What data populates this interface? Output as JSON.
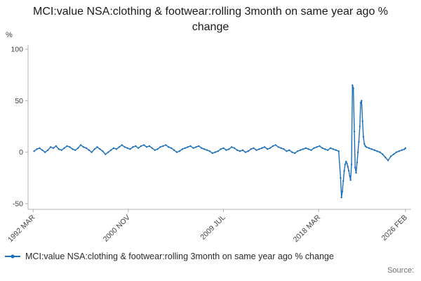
{
  "title": "MCI:value NSA:clothing & footwear:rolling 3month on same year ago % change",
  "source_label": "Source:",
  "legend": {
    "label": "MCI:value NSA:clothing & footwear:rolling 3month on same year ago % change"
  },
  "colors": {
    "line": "#1d70b8",
    "axis": "#b1b4b6",
    "tick_text": "#414042",
    "title_text": "#1a1a1a"
  },
  "chart_data": {
    "type": "line",
    "title": "MCI:value NSA:clothing & footwear:rolling 3month on same year ago % change",
    "xlabel": "",
    "ylabel": "%",
    "ylim": [
      -50,
      100
    ],
    "xlim": [
      1991.7,
      2026.6
    ],
    "yticks": [
      100,
      50,
      0,
      -50
    ],
    "xticks": [
      {
        "x": 1992.17,
        "label": "1992 MAR"
      },
      {
        "x": 2000.83,
        "label": "2000 NOV"
      },
      {
        "x": 2009.5,
        "label": "2009 JUL"
      },
      {
        "x": 2018.17,
        "label": "2018 MAR"
      },
      {
        "x": 2026.08,
        "label": "2026 FEB"
      }
    ],
    "grid": false,
    "legend_position": "bottom",
    "series": [
      {
        "name": "MCI:value NSA:clothing & footwear:rolling 3month on same year ago % change",
        "x": [
          1992.25,
          1992.5,
          1992.75,
          1993,
          1993.25,
          1993.5,
          1993.75,
          1994,
          1994.25,
          1994.5,
          1994.75,
          1995,
          1995.25,
          1995.5,
          1995.75,
          1996,
          1996.25,
          1996.5,
          1996.75,
          1997,
          1997.25,
          1997.5,
          1997.75,
          1998,
          1998.25,
          1998.5,
          1998.75,
          1999,
          1999.25,
          1999.5,
          1999.75,
          2000,
          2000.25,
          2000.5,
          2000.75,
          2001,
          2001.25,
          2001.5,
          2001.75,
          2002,
          2002.25,
          2002.5,
          2002.75,
          2003,
          2003.25,
          2003.5,
          2003.75,
          2004,
          2004.25,
          2004.5,
          2004.75,
          2005,
          2005.25,
          2005.5,
          2005.75,
          2006,
          2006.25,
          2006.5,
          2006.75,
          2007,
          2007.25,
          2007.5,
          2007.75,
          2008,
          2008.25,
          2008.5,
          2008.75,
          2009,
          2009.25,
          2009.5,
          2009.75,
          2010,
          2010.25,
          2010.5,
          2010.75,
          2011,
          2011.25,
          2011.5,
          2011.75,
          2012,
          2012.25,
          2012.5,
          2012.75,
          2013,
          2013.25,
          2013.5,
          2013.75,
          2014,
          2014.25,
          2014.5,
          2014.75,
          2015,
          2015.25,
          2015.5,
          2015.75,
          2016,
          2016.25,
          2016.5,
          2016.75,
          2017,
          2017.25,
          2017.5,
          2017.75,
          2018,
          2018.25,
          2018.5,
          2018.75,
          2019,
          2019.25,
          2019.5,
          2019.75,
          2020,
          2020.17,
          2020.25,
          2020.33,
          2020.42,
          2020.5,
          2020.58,
          2020.67,
          2020.75,
          2020.83,
          2020.92,
          2021,
          2021.08,
          2021.17,
          2021.25,
          2021.33,
          2021.42,
          2021.5,
          2021.58,
          2021.67,
          2021.75,
          2021.83,
          2021.92,
          2022,
          2022.08,
          2022.17,
          2022.25,
          2022.33,
          2022.42,
          2022.5,
          2022.75,
          2023,
          2023.25,
          2023.5,
          2023.75,
          2024,
          2024.25,
          2024.5,
          2024.75,
          2025,
          2025.25,
          2025.5,
          2025.75,
          2026,
          2026.08
        ],
        "y": [
          1,
          3,
          4,
          2,
          0,
          2,
          5,
          4,
          6,
          3,
          2,
          4,
          6,
          5,
          3,
          2,
          4,
          7,
          5,
          4,
          2,
          0,
          3,
          5,
          3,
          1,
          -2,
          0,
          2,
          4,
          3,
          5,
          7,
          5,
          4,
          3,
          5,
          6,
          4,
          6,
          7,
          5,
          6,
          4,
          2,
          3,
          5,
          6,
          7,
          5,
          4,
          2,
          0,
          1,
          3,
          4,
          5,
          6,
          4,
          5,
          6,
          4,
          3,
          2,
          1,
          -1,
          0,
          1,
          3,
          4,
          2,
          3,
          5,
          4,
          2,
          1,
          2,
          0,
          1,
          3,
          4,
          2,
          3,
          4,
          5,
          3,
          4,
          6,
          7,
          5,
          4,
          3,
          1,
          2,
          0,
          -1,
          1,
          2,
          3,
          4,
          3,
          2,
          4,
          5,
          6,
          4,
          3,
          2,
          4,
          3,
          2,
          1,
          -25,
          -44,
          -38,
          -28,
          -18,
          -12,
          -9,
          -11,
          -14,
          -18,
          -23,
          -27,
          -12,
          65,
          62,
          20,
          -15,
          -20,
          -10,
          0,
          10,
          25,
          48,
          50,
          30,
          15,
          8,
          6,
          5,
          4,
          3,
          2,
          1,
          0,
          -2,
          -5,
          -8,
          -4,
          -2,
          0,
          1,
          2,
          3,
          4
        ]
      }
    ]
  }
}
